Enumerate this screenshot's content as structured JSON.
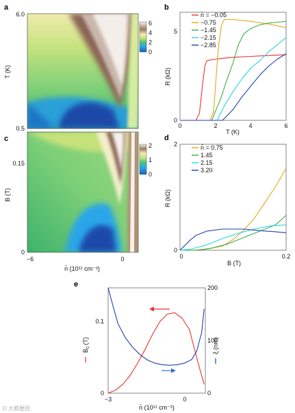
{
  "panels": {
    "a": {
      "label": "a",
      "y_ticks": [
        "6.0",
        "0.5"
      ],
      "ylabel": "T (K)",
      "colorbar_ticks": [
        "6",
        "4",
        "2",
        "0"
      ]
    },
    "b": {
      "label": "b",
      "ylabel": "R (kΩ)",
      "xlabel": "T (K)",
      "y_ticks": [
        "0",
        "5"
      ],
      "x_ticks": [
        "0",
        "2",
        "4",
        "6"
      ],
      "legend_prefix": "n̄ = "
    },
    "c": {
      "label": "c",
      "y_ticks": [
        "0.15",
        "0"
      ],
      "ylabel": "B (T)",
      "x_ticks": [
        "−6",
        "0"
      ],
      "xlabel": "n̄ (10¹¹ cm⁻²)",
      "colorbar_ticks": [
        "2",
        "1",
        "0"
      ]
    },
    "d": {
      "label": "d",
      "ylabel": "R (kΩ)",
      "xlabel": "B (T)",
      "y_ticks": [
        "0",
        "2"
      ],
      "x_ticks": [
        "0",
        "0.2"
      ],
      "legend_prefix": "n̄ = "
    },
    "e": {
      "label": "e",
      "ylabel_left": "B",
      "ylabel_left_sub": "c",
      "ylabel_left_unit": "(T)",
      "ylabel_right": "ξ (nm)",
      "y_ticks_left": [
        "0.1",
        "0"
      ],
      "y_ticks_right": [
        "200",
        "100",
        "0"
      ],
      "x_ticks": [
        "−3",
        "0"
      ],
      "xlabel": "n̄ (10¹¹ cm⁻²)"
    }
  },
  "watermark": "D 大都要园",
  "colors": {
    "red": "#e8312a",
    "orange": "#e8a317",
    "green": "#3cae4a",
    "cyan": "#25d6e0",
    "blue": "#1f3fa8"
  },
  "chart_data": [
    {
      "panel": "b",
      "type": "line",
      "xlabel": "T (K)",
      "ylabel": "R (kΩ)",
      "xlim": [
        0,
        6
      ],
      "ylim": [
        0,
        6
      ],
      "series": [
        {
          "name": "−0.05",
          "color": "#e8312a",
          "x": [
            0,
            0.9,
            1.1,
            1.2,
            1.3,
            1.4,
            1.5,
            1.7,
            2.0,
            2.5,
            3.0,
            4.0,
            5.0,
            6.0
          ],
          "y": [
            0,
            0,
            0.4,
            1.3,
            2.2,
            3.0,
            3.3,
            3.35,
            3.4,
            3.45,
            3.5,
            3.55,
            3.6,
            3.65
          ]
        },
        {
          "name": "−0.75",
          "color": "#e8a317",
          "x": [
            0,
            1.7,
            1.9,
            2.0,
            2.1,
            2.2,
            2.35,
            2.5,
            3.0,
            4.0,
            5.0,
            6.0
          ],
          "y": [
            0,
            0,
            0.5,
            1.8,
            3.2,
            4.3,
            5.3,
            5.6,
            5.6,
            5.5,
            5.35,
            5.15
          ]
        },
        {
          "name": "−1.45",
          "color": "#3cae4a",
          "x": [
            0,
            1.8,
            2.0,
            2.3,
            2.6,
            3.0,
            3.3,
            3.6,
            4.0,
            4.5,
            5.0,
            5.5,
            6.0
          ],
          "y": [
            0,
            0,
            0.5,
            1.2,
            2.1,
            3.2,
            4.2,
            4.8,
            5.1,
            5.3,
            5.4,
            5.45,
            5.5
          ]
        },
        {
          "name": "−2.15",
          "color": "#25d6e0",
          "x": [
            0,
            2.1,
            2.5,
            3.0,
            3.5,
            4.0,
            4.5,
            5.0,
            5.5,
            6.0
          ],
          "y": [
            0,
            0,
            0.8,
            1.6,
            2.3,
            2.9,
            3.3,
            3.8,
            4.2,
            4.6
          ]
        },
        {
          "name": "−2.85",
          "color": "#1f3fa8",
          "x": [
            0,
            2.4,
            3.0,
            3.5,
            4.0,
            4.5,
            5.0,
            5.5,
            6.0
          ],
          "y": [
            0,
            0,
            0.6,
            1.3,
            1.9,
            2.5,
            3.0,
            3.4,
            3.7
          ]
        }
      ]
    },
    {
      "panel": "d",
      "type": "line",
      "xlabel": "B (T)",
      "ylabel": "R (kΩ)",
      "xlim": [
        0,
        0.2
      ],
      "ylim": [
        0,
        2
      ],
      "series": [
        {
          "name": "0.75",
          "color": "#e8a317",
          "x": [
            0,
            0.02,
            0.05,
            0.08,
            0.1,
            0.12,
            0.14,
            0.16,
            0.18,
            0.2
          ],
          "y": [
            0,
            0,
            0.02,
            0.08,
            0.2,
            0.38,
            0.6,
            0.9,
            1.2,
            1.55
          ]
        },
        {
          "name": "1.45",
          "color": "#3cae4a",
          "x": [
            0,
            0.03,
            0.06,
            0.09,
            0.12,
            0.15,
            0.18,
            0.2
          ],
          "y": [
            0,
            0,
            0.04,
            0.12,
            0.24,
            0.36,
            0.48,
            0.66
          ]
        },
        {
          "name": "2.15",
          "color": "#25d6e0",
          "x": [
            0,
            0.02,
            0.05,
            0.08,
            0.11,
            0.14,
            0.17,
            0.2
          ],
          "y": [
            0,
            0.02,
            0.1,
            0.22,
            0.32,
            0.4,
            0.46,
            0.48
          ]
        },
        {
          "name": "3.20",
          "color": "#1f3fa8",
          "x": [
            0,
            0.01,
            0.02,
            0.03,
            0.05,
            0.08,
            0.12,
            0.15,
            0.18,
            0.2
          ],
          "y": [
            0,
            0.1,
            0.2,
            0.28,
            0.36,
            0.4,
            0.4,
            0.37,
            0.35,
            0.33
          ]
        }
      ]
    },
    {
      "panel": "e",
      "type": "line",
      "xlabel": "n̄ (10¹¹ cm⁻²)",
      "ylabel": "Bc (T)",
      "ylabel_right": "ξ (nm)",
      "xlim": [
        -3.3,
        0.65
      ],
      "ylim_left": [
        0,
        0.14
      ],
      "ylim_right": [
        0,
        200
      ],
      "series": [
        {
          "axis": "left",
          "color": "#e8312a",
          "x": [
            -3.3,
            -3.0,
            -2.7,
            -2.4,
            -2.1,
            -1.8,
            -1.5,
            -1.2,
            -0.9,
            -0.6,
            -0.3,
            0.0,
            0.2,
            0.4,
            0.6
          ],
          "y": [
            0,
            0.004,
            0.012,
            0.024,
            0.04,
            0.058,
            0.078,
            0.095,
            0.105,
            0.107,
            0.1,
            0.085,
            0.06,
            0.035,
            0.012
          ]
        },
        {
          "axis": "right",
          "color": "#1f3fa8",
          "x": [
            -3.3,
            -3.1,
            -2.9,
            -2.6,
            -2.3,
            -2.0,
            -1.7,
            -1.4,
            -1.1,
            -0.8,
            -0.5,
            -0.2,
            0.1,
            0.3,
            0.5,
            0.6
          ],
          "y": [
            200,
            165,
            132,
            105,
            87,
            73,
            63,
            57,
            54,
            53,
            54,
            57,
            64,
            80,
            115,
            160
          ]
        }
      ]
    }
  ]
}
